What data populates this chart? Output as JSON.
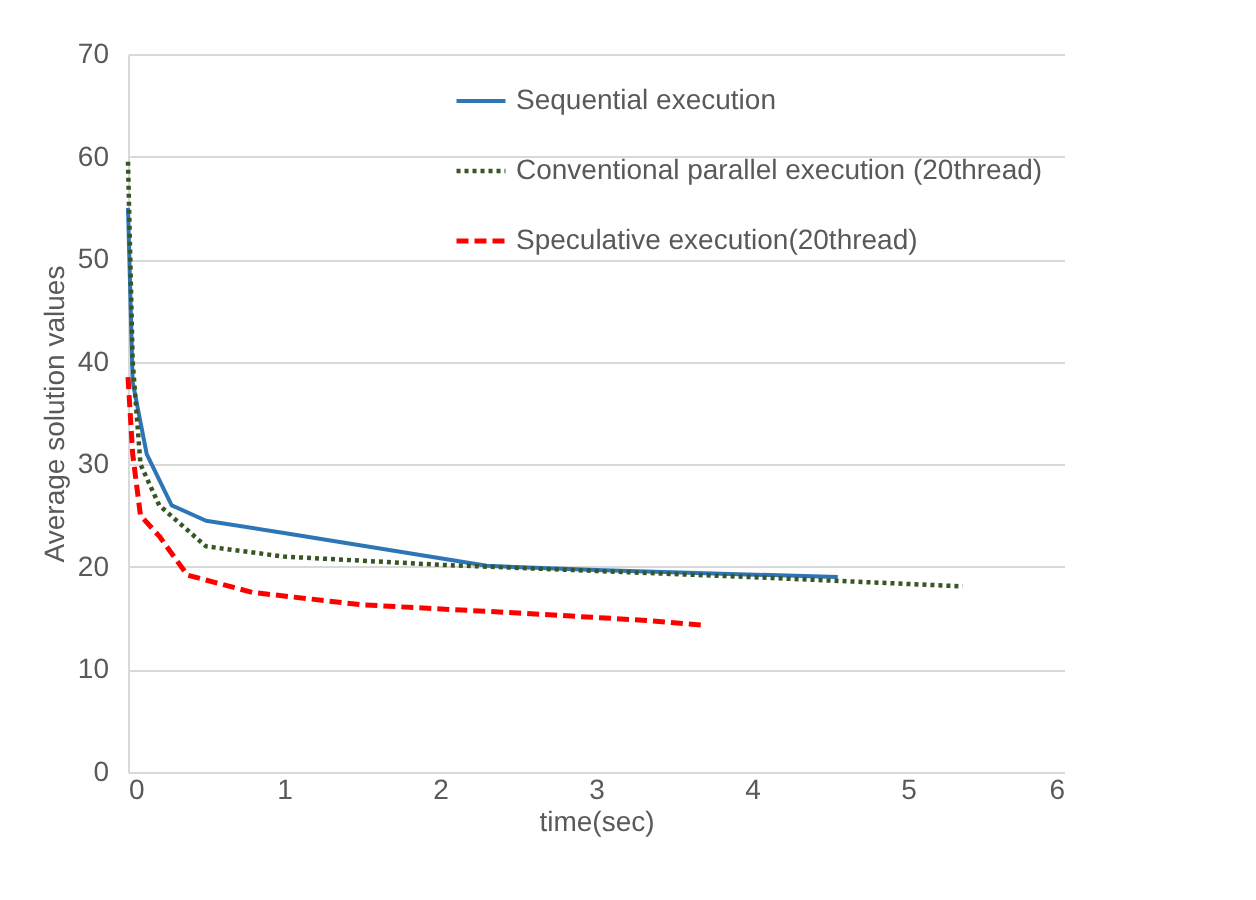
{
  "chart_data": {
    "type": "line",
    "xlabel": "time(sec)",
    "ylabel": "Average solution values",
    "xlim": [
      0,
      6
    ],
    "xticks": [
      0,
      1,
      2,
      3,
      4,
      5,
      6
    ],
    "ylim": [
      0,
      70
    ],
    "yticks": [
      0,
      10,
      20,
      30,
      40,
      50,
      60,
      70
    ],
    "grid": "y",
    "legend": "top right",
    "marker": "none",
    "series": [
      {
        "name": "Sequential execution",
        "color": "#2e75b6",
        "line_style": "solid",
        "x": [
          0,
          0.03,
          0.12,
          0.28,
          0.5,
          1.0,
          2.3,
          3,
          4.55
        ],
        "values": [
          55,
          38,
          31,
          26,
          24.5,
          23.3,
          20.1,
          19.7,
          19
        ]
      },
      {
        "name": "Conventional parallel execution (20thread)",
        "color": "#375623",
        "line_style": "dotted",
        "x": [
          0,
          0.03,
          0.08,
          0.2,
          0.5,
          1,
          2,
          3,
          4,
          5.35
        ],
        "values": [
          59.5,
          40,
          30,
          26,
          22,
          21,
          20.2,
          19.6,
          19,
          18.1
        ]
      },
      {
        "name": "Speculative execution(20thread)",
        "color": "#ff0000",
        "line_style": "dashed",
        "x": [
          0,
          0.03,
          0.08,
          0.2,
          0.38,
          0.8,
          1.5,
          2.5,
          3.3,
          3.7
        ],
        "values": [
          38.5,
          31,
          25,
          23,
          19.2,
          17.5,
          16.3,
          15.5,
          14.8,
          14.3
        ]
      }
    ]
  }
}
